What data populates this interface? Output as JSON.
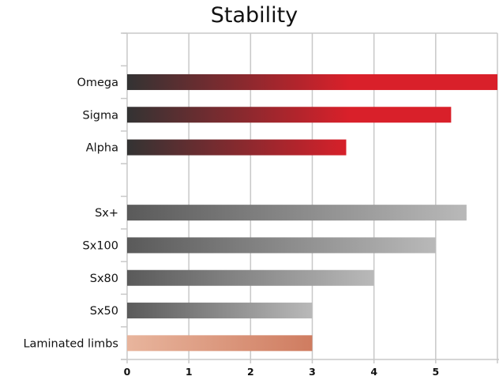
{
  "chart_data": {
    "type": "bar",
    "orientation": "horizontal",
    "title": "Stability",
    "xlabel": "",
    "ylabel": "",
    "xlim": [
      0,
      6
    ],
    "x_ticks": [
      "0",
      "1",
      "2",
      "3",
      "4",
      "5"
    ],
    "grid": "vertical",
    "legend": "none",
    "rows": [
      {
        "label": "",
        "value": null,
        "style": "empty"
      },
      {
        "label": "Omega",
        "value": 6.0,
        "style": "red"
      },
      {
        "label": "Sigma",
        "value": 5.25,
        "style": "red"
      },
      {
        "label": "Alpha",
        "value": 3.55,
        "style": "red"
      },
      {
        "label": "",
        "value": null,
        "style": "empty"
      },
      {
        "label": "Sx+",
        "value": 5.5,
        "style": "gray"
      },
      {
        "label": "Sx100",
        "value": 5.0,
        "style": "gray"
      },
      {
        "label": "Sx80",
        "value": 4.0,
        "style": "gray"
      },
      {
        "label": "Sx50",
        "value": 3.0,
        "style": "gray"
      },
      {
        "label": "Laminated limbs",
        "value": 3.0,
        "style": "salmon"
      }
    ],
    "colors": {
      "red": [
        "#333333",
        "#d9202a"
      ],
      "gray": [
        "#5a5a5a",
        "#b9b9b9"
      ],
      "salmon": [
        "#e8b59d",
        "#cf7c60"
      ],
      "grid": "#c8c8c8"
    }
  }
}
